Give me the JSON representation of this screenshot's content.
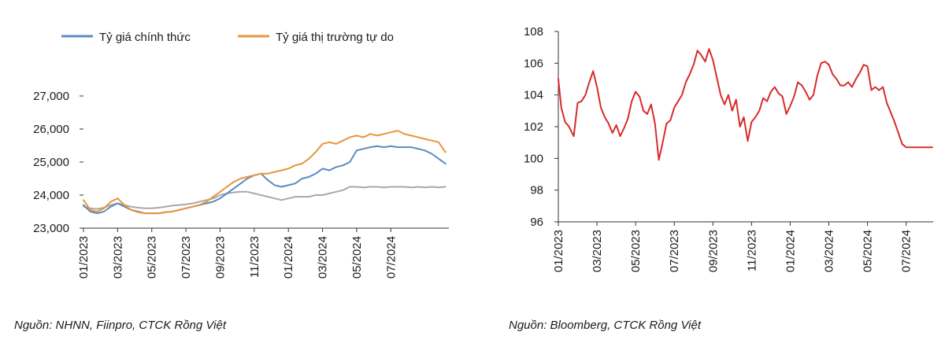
{
  "charts": [
    {
      "id": "left",
      "chart_data": {
        "type": "line",
        "title": "",
        "xlabel": "",
        "ylabel": "",
        "ylim": [
          23000,
          27000
        ],
        "y_ticks": [
          "27,000",
          "26,000",
          "25,000",
          "24,000",
          "23,000"
        ],
        "y_tick_values": [
          27000,
          26000,
          25000,
          24000,
          23000
        ],
        "x_range": [
          0,
          21.4
        ],
        "x_ticks": [
          "01/2023",
          "03/2023",
          "05/2023",
          "07/2023",
          "09/2023",
          "11/2023",
          "01/2024",
          "03/2024",
          "05/2024",
          "07/2024"
        ],
        "x_tick_values": [
          0,
          2,
          4,
          6,
          8,
          10,
          12,
          14,
          16,
          18
        ],
        "series": [
          {
            "name": "Tỷ giá chính thức",
            "color": "#5b8bc2",
            "x": [
              0,
              0.4,
              0.8,
              1.2,
              1.6,
              2.0,
              2.4,
              2.8,
              3.2,
              3.6,
              4.0,
              4.4,
              4.8,
              5.2,
              5.6,
              6.0,
              6.4,
              6.8,
              7.2,
              7.6,
              8.0,
              8.4,
              8.8,
              9.2,
              9.6,
              10.0,
              10.4,
              10.8,
              11.2,
              11.6,
              12.0,
              12.4,
              12.8,
              13.2,
              13.6,
              14.0,
              14.4,
              14.8,
              15.2,
              15.6,
              16.0,
              16.4,
              16.8,
              17.2,
              17.6,
              18.0,
              18.4,
              18.8,
              19.2,
              19.6,
              20.0,
              20.4,
              20.8,
              21.2
            ],
            "values": [
              23700,
              23500,
              23450,
              23500,
              23650,
              23750,
              23650,
              23550,
              23500,
              23450,
              23450,
              23450,
              23480,
              23500,
              23550,
              23600,
              23650,
              23700,
              23750,
              23800,
              23900,
              24050,
              24200,
              24350,
              24500,
              24600,
              24650,
              24450,
              24300,
              24250,
              24300,
              24350,
              24500,
              24550,
              24650,
              24800,
              24750,
              24850,
              24900,
              25000,
              25350,
              25400,
              25450,
              25480,
              25450,
              25480,
              25450,
              25450,
              25450,
              25400,
              25350,
              25250,
              25100,
              24950
            ]
          },
          {
            "name": "Tỷ giá thị trường tự do",
            "color": "#e8953a",
            "x": [
              0,
              0.4,
              0.8,
              1.2,
              1.6,
              2.0,
              2.4,
              2.8,
              3.2,
              3.6,
              4.0,
              4.4,
              4.8,
              5.2,
              5.6,
              6.0,
              6.4,
              6.8,
              7.2,
              7.6,
              8.0,
              8.4,
              8.8,
              9.2,
              9.6,
              10.0,
              10.4,
              10.8,
              11.2,
              11.6,
              12.0,
              12.4,
              12.8,
              13.2,
              13.6,
              14.0,
              14.4,
              14.8,
              15.2,
              15.6,
              16.0,
              16.4,
              16.8,
              17.2,
              17.6,
              18.0,
              18.4,
              18.8,
              19.2,
              19.6,
              20.0,
              20.4,
              20.8,
              21.2
            ],
            "values": [
              23850,
              23550,
              23500,
              23600,
              23800,
              23900,
              23700,
              23550,
              23480,
              23450,
              23450,
              23450,
              23480,
              23500,
              23550,
              23600,
              23650,
              23700,
              23800,
              23950,
              24100,
              24250,
              24400,
              24500,
              24550,
              24600,
              24650,
              24650,
              24700,
              24750,
              24800,
              24900,
              24950,
              25100,
              25300,
              25550,
              25600,
              25550,
              25650,
              25750,
              25800,
              25750,
              25850,
              25800,
              25850,
              25900,
              25950,
              25850,
              25800,
              25750,
              25700,
              25650,
              25600,
              25300
            ]
          },
          {
            "name": "",
            "color": "#a9a9a9",
            "x": [
              0,
              0.4,
              0.8,
              1.2,
              1.6,
              2.0,
              2.4,
              2.8,
              3.2,
              3.6,
              4.0,
              4.4,
              4.8,
              5.2,
              5.6,
              6.0,
              6.4,
              6.8,
              7.2,
              7.6,
              8.0,
              8.4,
              8.8,
              9.2,
              9.6,
              10.0,
              10.4,
              10.8,
              11.2,
              11.6,
              12.0,
              12.4,
              12.8,
              13.2,
              13.6,
              14.0,
              14.4,
              14.8,
              15.2,
              15.6,
              16.0,
              16.4,
              16.8,
              17.2,
              17.6,
              18.0,
              18.4,
              18.8,
              19.2,
              19.6,
              20.0,
              20.4,
              20.8,
              21.2
            ],
            "values": [
              23650,
              23600,
              23580,
              23620,
              23700,
              23750,
              23700,
              23650,
              23620,
              23600,
              23600,
              23620,
              23650,
              23680,
              23700,
              23720,
              23750,
              23800,
              23850,
              23900,
              24000,
              24050,
              24080,
              24100,
              24100,
              24050,
              24000,
              23950,
              23900,
              23850,
              23900,
              23950,
              23950,
              23950,
              24000,
              24000,
              24050,
              24100,
              24150,
              24250,
              24250,
              24230,
              24250,
              24250,
              24230,
              24250,
              24250,
              24250,
              24230,
              24250,
              24230,
              24250,
              24230,
              24250
            ]
          }
        ]
      },
      "source": "Nguồn: NHNN, Fiinpro, CTCK Rồng Việt"
    },
    {
      "id": "right",
      "chart_data": {
        "type": "line",
        "title": "",
        "xlabel": "",
        "ylabel": "",
        "ylim": [
          96,
          108
        ],
        "y_ticks": [
          "108",
          "106",
          "104",
          "102",
          "100",
          "98",
          "96"
        ],
        "y_tick_values": [
          108,
          106,
          104,
          102,
          100,
          98,
          96
        ],
        "x_range": [
          0,
          19.4
        ],
        "x_ticks": [
          "01/2023",
          "03/2023",
          "05/2023",
          "07/2023",
          "09/2023",
          "11/2023",
          "01/2024",
          "03/2024",
          "05/2024",
          "07/2024"
        ],
        "x_tick_values": [
          0,
          2,
          4,
          6,
          8,
          10,
          12,
          14,
          16,
          18
        ],
        "series": [
          {
            "name": "",
            "color": "#d92b2b",
            "x": [
              0,
              0.15,
              0.35,
              0.55,
              0.8,
              1.0,
              1.2,
              1.4,
              1.6,
              1.8,
              2.0,
              2.2,
              2.4,
              2.6,
              2.8,
              3.0,
              3.2,
              3.4,
              3.6,
              3.8,
              4.0,
              4.2,
              4.4,
              4.6,
              4.8,
              5.0,
              5.2,
              5.4,
              5.6,
              5.8,
              6.0,
              6.2,
              6.4,
              6.6,
              6.8,
              7.0,
              7.2,
              7.4,
              7.6,
              7.8,
              8.0,
              8.2,
              8.4,
              8.6,
              8.8,
              9.0,
              9.2,
              9.4,
              9.6,
              9.8,
              10.0,
              10.2,
              10.4,
              10.6,
              10.8,
              11.0,
              11.2,
              11.4,
              11.6,
              11.8,
              12.0,
              12.2,
              12.4,
              12.6,
              12.8,
              13.0,
              13.2,
              13.4,
              13.6,
              13.8,
              14.0,
              14.2,
              14.4,
              14.6,
              14.8,
              15.0,
              15.2,
              15.4,
              15.6,
              15.8,
              16.0,
              16.2,
              16.4,
              16.6,
              16.8,
              17.0,
              17.2,
              17.4,
              17.6,
              17.8,
              18.0,
              18.2,
              18.4,
              18.6,
              18.8,
              19.0,
              19.2,
              19.35
            ],
            "values": [
              105.0,
              103.2,
              102.3,
              102.0,
              101.4,
              103.5,
              103.6,
              104.0,
              104.8,
              105.5,
              104.5,
              103.2,
              102.6,
              102.2,
              101.6,
              102.1,
              101.4,
              101.9,
              102.5,
              103.6,
              104.2,
              103.9,
              103.0,
              102.8,
              103.4,
              102.2,
              99.9,
              101.0,
              102.2,
              102.4,
              103.2,
              103.6,
              104.0,
              104.8,
              105.3,
              105.9,
              106.8,
              106.5,
              106.1,
              106.9,
              106.2,
              105.1,
              104.0,
              103.4,
              104.0,
              103.0,
              103.7,
              102.0,
              102.6,
              101.1,
              102.3,
              102.6,
              103.0,
              103.8,
              103.6,
              104.2,
              104.5,
              104.1,
              103.9,
              102.8,
              103.3,
              103.9,
              104.8,
              104.6,
              104.2,
              103.7,
              104.0,
              105.2,
              106.0,
              106.1,
              105.9,
              105.3,
              105.0,
              104.6,
              104.6,
              104.8,
              104.5,
              105.0,
              105.4,
              105.9,
              105.8,
              104.3,
              104.5,
              104.3,
              104.5,
              103.5,
              102.9,
              102.3,
              101.6,
              100.9,
              100.7,
              100.7,
              100.7,
              100.7,
              100.7,
              100.7,
              100.7,
              100.7
            ]
          }
        ]
      },
      "source": "Nguồn: Bloomberg,  CTCK Rồng Việt"
    }
  ]
}
